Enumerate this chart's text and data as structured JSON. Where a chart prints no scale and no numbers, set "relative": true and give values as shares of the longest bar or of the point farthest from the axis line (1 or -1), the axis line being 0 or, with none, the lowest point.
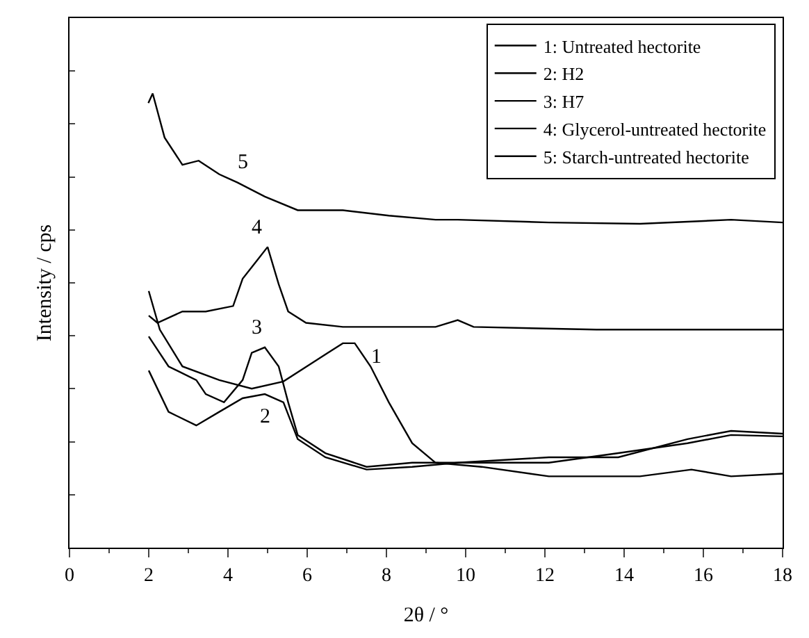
{
  "chart_data": {
    "type": "line",
    "xlabel": "2θ / °",
    "ylabel": "Intensity / cps",
    "relative": true,
    "xlim": [
      0,
      18
    ],
    "xticks": [
      0,
      2,
      4,
      6,
      8,
      10,
      12,
      14,
      16,
      18
    ],
    "legend": "top right",
    "marker": "none",
    "line_style": "solid",
    "series": [
      {
        "name": "1: Untreated hectorite",
        "color": "#000000",
        "x": [
          2.0,
          2.28,
          2.85,
          3.78,
          4.6,
          5.4,
          6.2,
          6.9,
          7.2,
          7.6,
          8.06,
          8.65,
          9.24,
          10.4,
          12.1,
          14.4,
          15.7,
          16.7,
          18
        ],
        "values": [
          0.565,
          0.48,
          0.399,
          0.369,
          0.35,
          0.366,
          0.411,
          0.45,
          0.45,
          0.399,
          0.32,
          0.23,
          0.187,
          0.178,
          0.157,
          0.157,
          0.172,
          0.157,
          0.163
        ]
      },
      {
        "name": "2: H2",
        "color": "#000000",
        "x": [
          2.0,
          2.5,
          3.2,
          3.78,
          4.37,
          4.93,
          5.4,
          5.76,
          6.46,
          7.5,
          8.65,
          9.8,
          12.1,
          13.85,
          15.6,
          16.7,
          18
        ],
        "values": [
          0.39,
          0.299,
          0.269,
          0.299,
          0.329,
          0.338,
          0.32,
          0.239,
          0.199,
          0.172,
          0.178,
          0.187,
          0.199,
          0.199,
          0.239,
          0.257,
          0.251
        ]
      },
      {
        "name": "3: H7",
        "color": "#000000",
        "x": [
          2.0,
          2.5,
          3.2,
          3.44,
          3.9,
          4.37,
          4.6,
          4.93,
          5.28,
          5.52,
          5.76,
          6.46,
          7.5,
          8.65,
          9.8,
          12.1,
          13.85,
          15.6,
          16.7,
          18
        ],
        "values": [
          0.465,
          0.399,
          0.369,
          0.338,
          0.32,
          0.369,
          0.429,
          0.441,
          0.399,
          0.32,
          0.248,
          0.208,
          0.178,
          0.187,
          0.187,
          0.187,
          0.208,
          0.23,
          0.248,
          0.245
        ]
      },
      {
        "name": "4: Glycerol-untreated hectorite",
        "color": "#000000",
        "x": [
          2.0,
          2.22,
          2.85,
          3.44,
          4.13,
          4.37,
          4.72,
          5.0,
          5.28,
          5.52,
          5.97,
          6.9,
          9.24,
          9.8,
          10.2,
          13.3,
          18
        ],
        "values": [
          0.511,
          0.495,
          0.52,
          0.52,
          0.532,
          0.592,
          0.631,
          0.662,
          0.58,
          0.52,
          0.495,
          0.486,
          0.486,
          0.501,
          0.486,
          0.48,
          0.48
        ]
      },
      {
        "name": "5: Starch-untreated hectorite",
        "color": "#000000",
        "x": [
          1.99,
          2.1,
          2.4,
          2.85,
          3.26,
          3.78,
          4.24,
          4.93,
          5.76,
          6.9,
          8.06,
          9.24,
          9.8,
          12.1,
          14.4,
          16.7,
          18
        ],
        "values": [
          0.979,
          1.0,
          0.903,
          0.843,
          0.852,
          0.822,
          0.804,
          0.773,
          0.743,
          0.743,
          0.731,
          0.722,
          0.722,
          0.716,
          0.713,
          0.722,
          0.716
        ]
      }
    ],
    "annotations": [
      "1",
      "2",
      "3",
      "4",
      "5"
    ]
  }
}
